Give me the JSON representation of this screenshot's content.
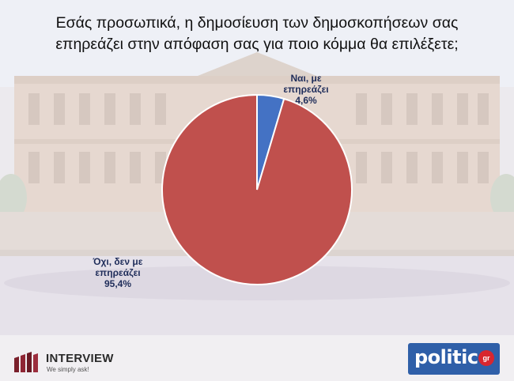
{
  "title_line1": "Εσάς προσωπικά, η δημοσίευση των δημοσκοπήσεων σας",
  "title_line2": "επηρεάζει στην απόφαση σας για ποιο κόμμα θα επιλέξετε;",
  "chart_data": {
    "type": "pie",
    "title": "Εσάς προσωπικά, η δημοσίευση των δημοσκοπήσεων σας επηρεάζει στην απόφαση σας για ποιο κόμμα θα επιλέξετε;",
    "slices": [
      {
        "label_line1": "Ναι, με",
        "label_line2": "επηρεάζει",
        "value_text": "4,6%",
        "value": 4.6,
        "color": "#4472c4"
      },
      {
        "label_line1": "Όχι, δεν με",
        "label_line2": "επηρεάζει",
        "value_text": "95,4%",
        "value": 95.4,
        "color": "#c0504d"
      }
    ],
    "start_angle_deg": 0,
    "direction": "clockwise"
  },
  "logos": {
    "interview_name": "INTERVIEW",
    "interview_tagline": "We simply ask!",
    "politic_name": "politic",
    "politic_badge": "gr"
  }
}
